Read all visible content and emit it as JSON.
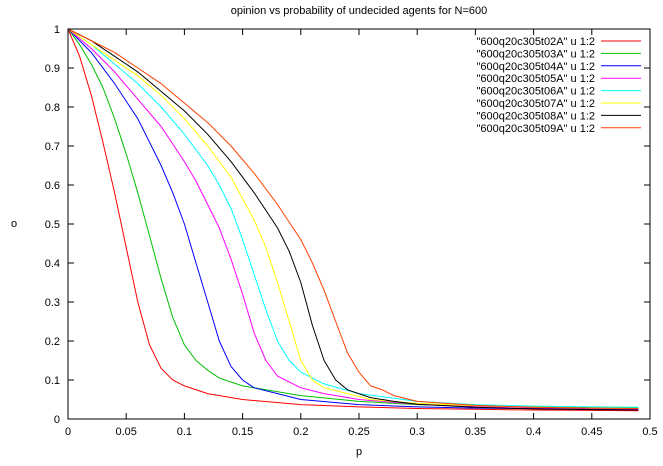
{
  "chart_data": {
    "type": "line",
    "title": "opinion vs probability of undecided agents for N=600",
    "xlabel": "p",
    "ylabel": "o",
    "xlim": [
      0,
      0.5
    ],
    "ylim": [
      0,
      1
    ],
    "xticks": [
      "0",
      "0.05",
      "0.1",
      "0.15",
      "0.2",
      "0.25",
      "0.3",
      "0.35",
      "0.4",
      "0.45",
      "0.5"
    ],
    "yticks": [
      "0",
      "0.1",
      "0.2",
      "0.3",
      "0.4",
      "0.5",
      "0.6",
      "0.7",
      "0.8",
      "0.9",
      "1"
    ],
    "grid": false,
    "legend_position": "top-right",
    "series": [
      {
        "name": "\"600q20c305t02A\" u 1:2",
        "color": "#ff0000",
        "x": [
          0,
          0.01,
          0.02,
          0.03,
          0.04,
          0.05,
          0.06,
          0.07,
          0.08,
          0.09,
          0.1,
          0.12,
          0.15,
          0.2,
          0.25,
          0.3,
          0.35,
          0.4,
          0.45,
          0.49
        ],
        "y": [
          1,
          0.93,
          0.83,
          0.71,
          0.58,
          0.44,
          0.3,
          0.19,
          0.13,
          0.1,
          0.085,
          0.065,
          0.05,
          0.037,
          0.031,
          0.027,
          0.025,
          0.023,
          0.022,
          0.021
        ]
      },
      {
        "name": "\"600q20c305t03A\" u 1:2",
        "color": "#00c000",
        "x": [
          0,
          0.01,
          0.02,
          0.03,
          0.04,
          0.05,
          0.06,
          0.07,
          0.08,
          0.09,
          0.1,
          0.11,
          0.12,
          0.13,
          0.15,
          0.17,
          0.2,
          0.25,
          0.3,
          0.35,
          0.4,
          0.45,
          0.49
        ],
        "y": [
          1,
          0.96,
          0.91,
          0.85,
          0.77,
          0.68,
          0.58,
          0.47,
          0.36,
          0.26,
          0.19,
          0.15,
          0.125,
          0.105,
          0.085,
          0.075,
          0.06,
          0.045,
          0.037,
          0.033,
          0.031,
          0.03,
          0.029
        ]
      },
      {
        "name": "\"600q20c305t04A\" u 1:2",
        "color": "#0000ff",
        "x": [
          0,
          0.02,
          0.04,
          0.06,
          0.08,
          0.09,
          0.1,
          0.11,
          0.12,
          0.13,
          0.14,
          0.15,
          0.16,
          0.18,
          0.2,
          0.25,
          0.3,
          0.35,
          0.4,
          0.45,
          0.49
        ],
        "y": [
          1,
          0.94,
          0.86,
          0.77,
          0.65,
          0.58,
          0.5,
          0.4,
          0.3,
          0.2,
          0.135,
          0.1,
          0.08,
          0.065,
          0.05,
          0.037,
          0.031,
          0.028,
          0.027,
          0.026,
          0.025
        ]
      },
      {
        "name": "\"600q20c305t05A\" u 1:2",
        "color": "#ff00ff",
        "x": [
          0,
          0.02,
          0.04,
          0.06,
          0.08,
          0.1,
          0.11,
          0.12,
          0.13,
          0.14,
          0.15,
          0.16,
          0.17,
          0.18,
          0.2,
          0.22,
          0.25,
          0.3,
          0.35,
          0.4,
          0.45,
          0.49
        ],
        "y": [
          1,
          0.95,
          0.89,
          0.82,
          0.75,
          0.66,
          0.61,
          0.55,
          0.49,
          0.41,
          0.32,
          0.22,
          0.15,
          0.11,
          0.08,
          0.065,
          0.05,
          0.038,
          0.032,
          0.029,
          0.027,
          0.026
        ]
      },
      {
        "name": "\"600q20c305t06A\" u 1:2",
        "color": "#00ffff",
        "x": [
          0,
          0.02,
          0.04,
          0.06,
          0.08,
          0.1,
          0.12,
          0.13,
          0.14,
          0.15,
          0.16,
          0.17,
          0.18,
          0.19,
          0.2,
          0.22,
          0.25,
          0.3,
          0.35,
          0.4,
          0.45,
          0.49
        ],
        "y": [
          1,
          0.96,
          0.91,
          0.86,
          0.8,
          0.73,
          0.65,
          0.6,
          0.54,
          0.46,
          0.37,
          0.28,
          0.2,
          0.15,
          0.12,
          0.09,
          0.065,
          0.045,
          0.037,
          0.033,
          0.031,
          0.03
        ]
      },
      {
        "name": "\"600q20c305t07A\" u 1:2",
        "color": "#ffff00",
        "x": [
          0,
          0.02,
          0.04,
          0.06,
          0.08,
          0.1,
          0.12,
          0.14,
          0.16,
          0.17,
          0.18,
          0.19,
          0.2,
          0.21,
          0.22,
          0.24,
          0.26,
          0.3,
          0.35,
          0.4,
          0.45,
          0.49
        ],
        "y": [
          1,
          0.96,
          0.92,
          0.88,
          0.83,
          0.77,
          0.7,
          0.62,
          0.51,
          0.44,
          0.35,
          0.25,
          0.15,
          0.1,
          0.08,
          0.065,
          0.05,
          0.04,
          0.034,
          0.03,
          0.028,
          0.027
        ]
      },
      {
        "name": "\"600q20c305t08A\" u 1:2",
        "color": "#000000",
        "x": [
          0,
          0.02,
          0.04,
          0.06,
          0.08,
          0.1,
          0.12,
          0.14,
          0.16,
          0.18,
          0.19,
          0.2,
          0.21,
          0.22,
          0.23,
          0.24,
          0.26,
          0.28,
          0.3,
          0.35,
          0.4,
          0.45,
          0.49
        ],
        "y": [
          1,
          0.97,
          0.93,
          0.89,
          0.84,
          0.79,
          0.73,
          0.66,
          0.58,
          0.49,
          0.43,
          0.35,
          0.24,
          0.15,
          0.1,
          0.075,
          0.055,
          0.045,
          0.038,
          0.03,
          0.026,
          0.024,
          0.023
        ]
      },
      {
        "name": "\"600q20c305t09A\" u 1:2",
        "color": "#ff4000",
        "x": [
          0,
          0.02,
          0.04,
          0.06,
          0.08,
          0.1,
          0.12,
          0.14,
          0.16,
          0.18,
          0.2,
          0.21,
          0.22,
          0.23,
          0.24,
          0.25,
          0.26,
          0.27,
          0.28,
          0.3,
          0.35,
          0.4,
          0.45,
          0.49
        ],
        "y": [
          1,
          0.97,
          0.94,
          0.9,
          0.86,
          0.81,
          0.76,
          0.7,
          0.63,
          0.55,
          0.46,
          0.4,
          0.33,
          0.25,
          0.17,
          0.12,
          0.085,
          0.075,
          0.06,
          0.045,
          0.035,
          0.03,
          0.028,
          0.027
        ]
      }
    ]
  }
}
